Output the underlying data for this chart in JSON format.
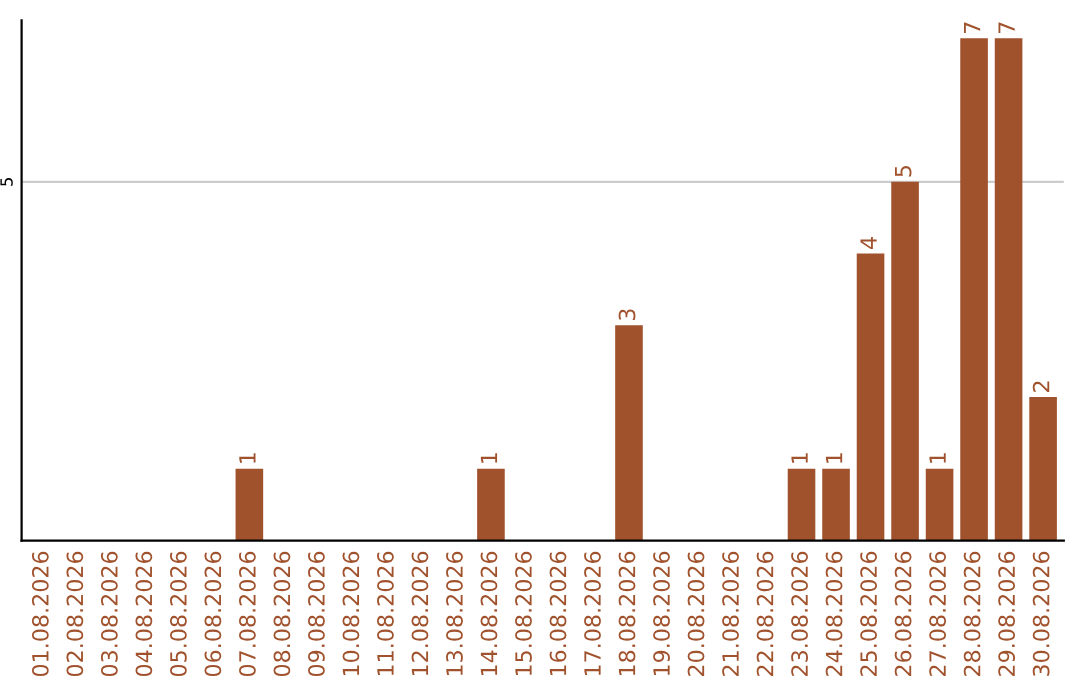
{
  "chart_data": {
    "type": "bar",
    "categories": [
      "01.08.2026",
      "02.08.2026",
      "03.08.2026",
      "04.08.2026",
      "05.08.2026",
      "06.08.2026",
      "07.08.2026",
      "08.08.2026",
      "09.08.2026",
      "10.08.2026",
      "11.08.2026",
      "12.08.2026",
      "13.08.2026",
      "14.08.2026",
      "15.08.2026",
      "16.08.2026",
      "17.08.2026",
      "18.08.2026",
      "19.08.2026",
      "20.08.2026",
      "21.08.2026",
      "22.08.2026",
      "23.08.2026",
      "24.08.2026",
      "25.08.2026",
      "26.08.2026",
      "27.08.2026",
      "28.08.2026",
      "29.08.2026",
      "30.08.2026"
    ],
    "values": [
      0,
      0,
      0,
      0,
      0,
      0,
      1,
      0,
      0,
      0,
      0,
      0,
      0,
      1,
      0,
      0,
      0,
      3,
      0,
      0,
      0,
      0,
      1,
      1,
      4,
      5,
      1,
      7,
      7,
      2
    ],
    "value_labels": [
      null,
      null,
      null,
      null,
      null,
      null,
      "1",
      null,
      null,
      null,
      null,
      null,
      null,
      "1",
      null,
      null,
      null,
      "3",
      null,
      null,
      null,
      null,
      "1",
      "1",
      "4",
      "5",
      "1",
      "7",
      "7",
      "2"
    ],
    "color": "#a0522d",
    "ylim": [
      0,
      7.25
    ],
    "yticks": [
      5
    ],
    "grid": "y"
  }
}
